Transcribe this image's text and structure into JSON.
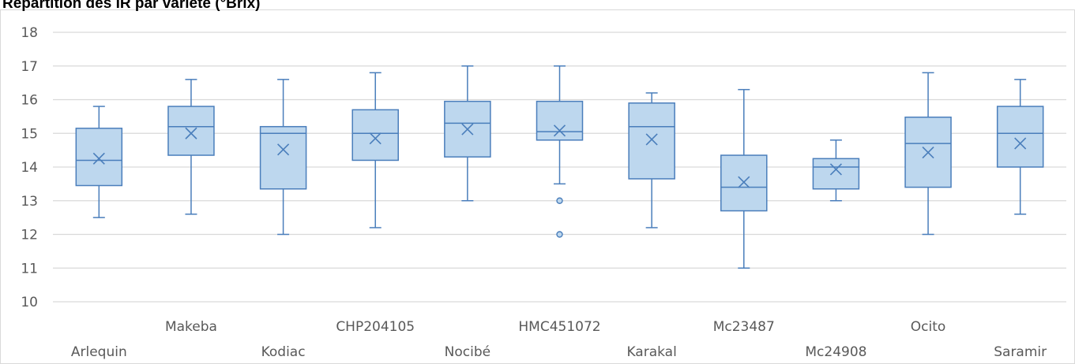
{
  "chart_data": {
    "type": "box",
    "title": "Répartition des IR par variété (°Brix)",
    "xlabel": "",
    "ylabel": "",
    "ylim": [
      10,
      18
    ],
    "yticks": [
      "10",
      "11",
      "12",
      "13",
      "14",
      "15",
      "16",
      "17",
      "18"
    ],
    "grid": true,
    "legend": "none",
    "colors": {
      "box_fill": "#bdd7ee",
      "box_stroke": "#4a7ebb",
      "grid": "#d9d9d9",
      "tick_text": "#595959"
    },
    "categories": [
      "Arlequin",
      "Makeba",
      "Kodiac",
      "CHP204105",
      "Nocibé",
      "HMC451072",
      "Karakal",
      "Mc23487",
      "Mc24908",
      "Ocito",
      "Saramir"
    ],
    "boxes": [
      {
        "name": "Arlequin",
        "min": 12.5,
        "q1": 13.45,
        "median": 14.2,
        "q3": 15.15,
        "max": 15.8,
        "mean": 14.25,
        "outliers": []
      },
      {
        "name": "Makeba",
        "min": 12.6,
        "q1": 14.35,
        "median": 15.2,
        "q3": 15.8,
        "max": 16.6,
        "mean": 15.0,
        "outliers": []
      },
      {
        "name": "Kodiac",
        "min": 12.0,
        "q1": 13.35,
        "median": 15.0,
        "q3": 15.2,
        "max": 16.6,
        "mean": 14.52,
        "outliers": []
      },
      {
        "name": "CHP204105",
        "min": 12.2,
        "q1": 14.2,
        "median": 15.0,
        "q3": 15.7,
        "max": 16.8,
        "mean": 14.85,
        "outliers": []
      },
      {
        "name": "Nocibé",
        "min": 13.0,
        "q1": 14.3,
        "median": 15.3,
        "q3": 15.95,
        "max": 17.0,
        "mean": 15.12,
        "outliers": []
      },
      {
        "name": "HMC451072",
        "min": 13.5,
        "q1": 14.8,
        "median": 15.05,
        "q3": 15.95,
        "max": 17.0,
        "mean": 15.08,
        "outliers": [
          13.0,
          12.0
        ]
      },
      {
        "name": "Karakal",
        "min": 12.2,
        "q1": 13.65,
        "median": 15.2,
        "q3": 15.9,
        "max": 16.2,
        "mean": 14.82,
        "outliers": []
      },
      {
        "name": "Mc23487",
        "min": 11.0,
        "q1": 12.7,
        "median": 13.4,
        "q3": 14.35,
        "max": 16.3,
        "mean": 13.55,
        "outliers": []
      },
      {
        "name": "Mc24908",
        "min": 13.0,
        "q1": 13.35,
        "median": 14.0,
        "q3": 14.25,
        "max": 14.8,
        "mean": 13.93,
        "outliers": []
      },
      {
        "name": "Ocito",
        "min": 12.0,
        "q1": 13.4,
        "median": 14.7,
        "q3": 15.48,
        "max": 16.8,
        "mean": 14.43,
        "outliers": []
      },
      {
        "name": "Saramir",
        "min": 12.6,
        "q1": 14.0,
        "median": 15.0,
        "q3": 15.8,
        "max": 16.6,
        "mean": 14.7,
        "outliers": []
      }
    ]
  }
}
